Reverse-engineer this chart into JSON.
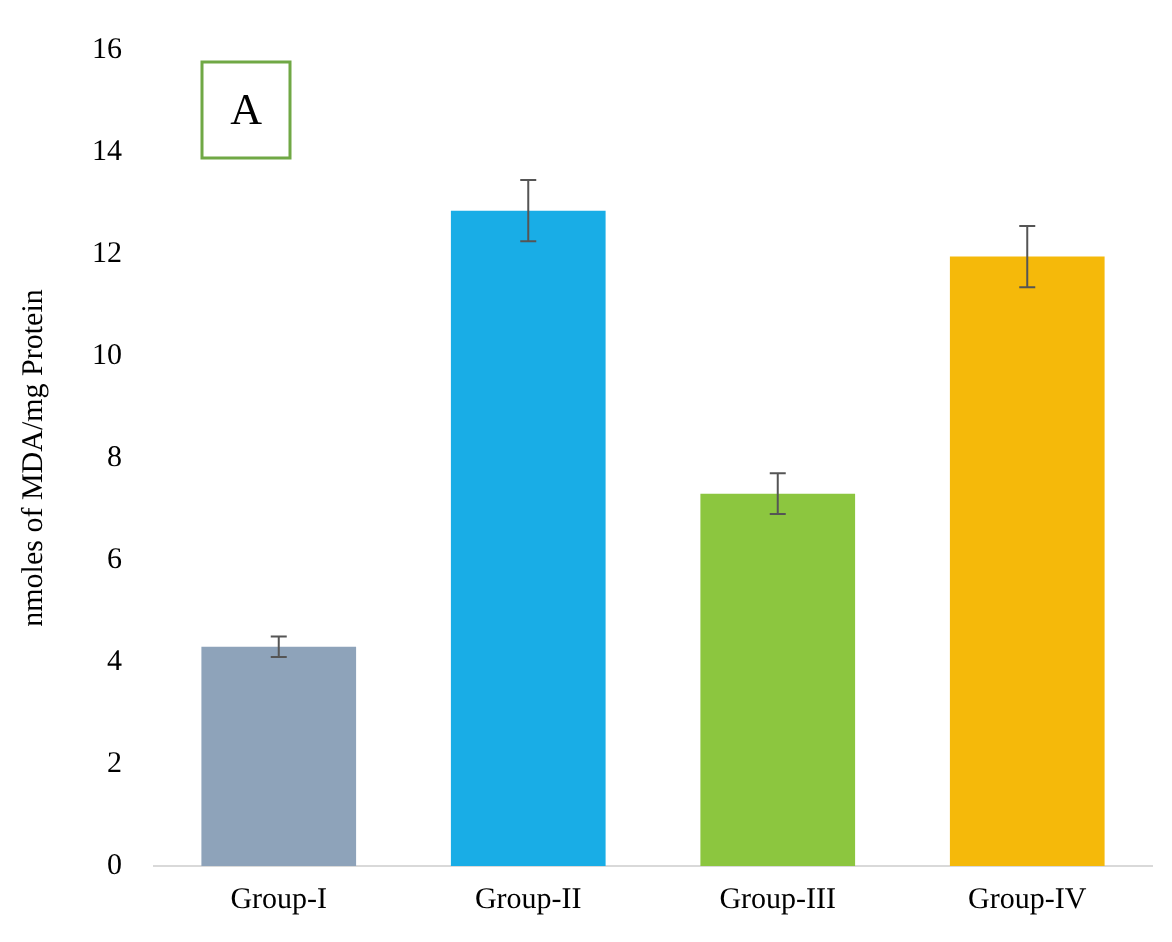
{
  "chart_data": {
    "type": "bar",
    "ylabel": "nmoles of MDA/mg Protein",
    "categories": [
      "Group-I",
      "Group-II",
      "Group-III",
      "Group-IV"
    ],
    "values": [
      4.3,
      12.85,
      7.3,
      11.95
    ],
    "errors": [
      0.2,
      0.6,
      0.4,
      0.6
    ],
    "colors": [
      "#8ea3ba",
      "#19ade6",
      "#8cc63f",
      "#f5b90a"
    ],
    "ylim": [
      0,
      16
    ],
    "yticks": [
      0,
      2,
      4,
      6,
      8,
      10,
      12,
      14,
      16
    ],
    "grid": false,
    "legend": false,
    "annotations": [
      "A"
    ]
  }
}
